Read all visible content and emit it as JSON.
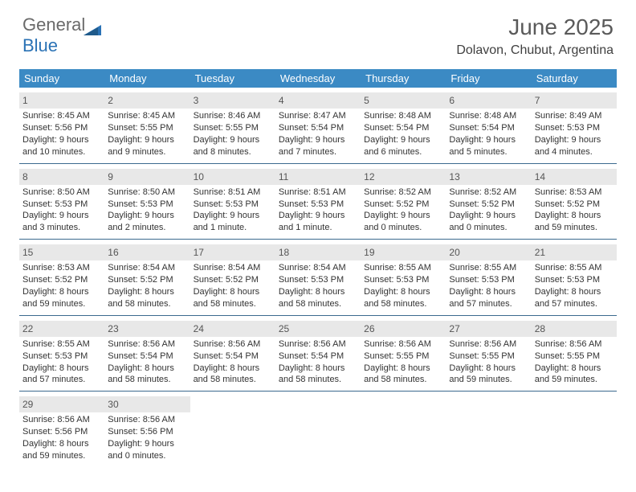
{
  "brand": {
    "part1": "General",
    "part2": "Blue"
  },
  "title": "June 2025",
  "location": "Dolavon, Chubut, Argentina",
  "colors": {
    "header_bar": "#3b8ac4",
    "day_num_bg": "#e8e8e8",
    "week_divider": "#3b6a8e",
    "brand_gray": "#6a6a6a",
    "brand_blue": "#2a72b5"
  },
  "days_of_week": [
    "Sunday",
    "Monday",
    "Tuesday",
    "Wednesday",
    "Thursday",
    "Friday",
    "Saturday"
  ],
  "weeks": [
    [
      {
        "n": "1",
        "sr": "Sunrise: 8:45 AM",
        "ss": "Sunset: 5:56 PM",
        "d1": "Daylight: 9 hours",
        "d2": "and 10 minutes."
      },
      {
        "n": "2",
        "sr": "Sunrise: 8:45 AM",
        "ss": "Sunset: 5:55 PM",
        "d1": "Daylight: 9 hours",
        "d2": "and 9 minutes."
      },
      {
        "n": "3",
        "sr": "Sunrise: 8:46 AM",
        "ss": "Sunset: 5:55 PM",
        "d1": "Daylight: 9 hours",
        "d2": "and 8 minutes."
      },
      {
        "n": "4",
        "sr": "Sunrise: 8:47 AM",
        "ss": "Sunset: 5:54 PM",
        "d1": "Daylight: 9 hours",
        "d2": "and 7 minutes."
      },
      {
        "n": "5",
        "sr": "Sunrise: 8:48 AM",
        "ss": "Sunset: 5:54 PM",
        "d1": "Daylight: 9 hours",
        "d2": "and 6 minutes."
      },
      {
        "n": "6",
        "sr": "Sunrise: 8:48 AM",
        "ss": "Sunset: 5:54 PM",
        "d1": "Daylight: 9 hours",
        "d2": "and 5 minutes."
      },
      {
        "n": "7",
        "sr": "Sunrise: 8:49 AM",
        "ss": "Sunset: 5:53 PM",
        "d1": "Daylight: 9 hours",
        "d2": "and 4 minutes."
      }
    ],
    [
      {
        "n": "8",
        "sr": "Sunrise: 8:50 AM",
        "ss": "Sunset: 5:53 PM",
        "d1": "Daylight: 9 hours",
        "d2": "and 3 minutes."
      },
      {
        "n": "9",
        "sr": "Sunrise: 8:50 AM",
        "ss": "Sunset: 5:53 PM",
        "d1": "Daylight: 9 hours",
        "d2": "and 2 minutes."
      },
      {
        "n": "10",
        "sr": "Sunrise: 8:51 AM",
        "ss": "Sunset: 5:53 PM",
        "d1": "Daylight: 9 hours",
        "d2": "and 1 minute."
      },
      {
        "n": "11",
        "sr": "Sunrise: 8:51 AM",
        "ss": "Sunset: 5:53 PM",
        "d1": "Daylight: 9 hours",
        "d2": "and 1 minute."
      },
      {
        "n": "12",
        "sr": "Sunrise: 8:52 AM",
        "ss": "Sunset: 5:52 PM",
        "d1": "Daylight: 9 hours",
        "d2": "and 0 minutes."
      },
      {
        "n": "13",
        "sr": "Sunrise: 8:52 AM",
        "ss": "Sunset: 5:52 PM",
        "d1": "Daylight: 9 hours",
        "d2": "and 0 minutes."
      },
      {
        "n": "14",
        "sr": "Sunrise: 8:53 AM",
        "ss": "Sunset: 5:52 PM",
        "d1": "Daylight: 8 hours",
        "d2": "and 59 minutes."
      }
    ],
    [
      {
        "n": "15",
        "sr": "Sunrise: 8:53 AM",
        "ss": "Sunset: 5:52 PM",
        "d1": "Daylight: 8 hours",
        "d2": "and 59 minutes."
      },
      {
        "n": "16",
        "sr": "Sunrise: 8:54 AM",
        "ss": "Sunset: 5:52 PM",
        "d1": "Daylight: 8 hours",
        "d2": "and 58 minutes."
      },
      {
        "n": "17",
        "sr": "Sunrise: 8:54 AM",
        "ss": "Sunset: 5:52 PM",
        "d1": "Daylight: 8 hours",
        "d2": "and 58 minutes."
      },
      {
        "n": "18",
        "sr": "Sunrise: 8:54 AM",
        "ss": "Sunset: 5:53 PM",
        "d1": "Daylight: 8 hours",
        "d2": "and 58 minutes."
      },
      {
        "n": "19",
        "sr": "Sunrise: 8:55 AM",
        "ss": "Sunset: 5:53 PM",
        "d1": "Daylight: 8 hours",
        "d2": "and 58 minutes."
      },
      {
        "n": "20",
        "sr": "Sunrise: 8:55 AM",
        "ss": "Sunset: 5:53 PM",
        "d1": "Daylight: 8 hours",
        "d2": "and 57 minutes."
      },
      {
        "n": "21",
        "sr": "Sunrise: 8:55 AM",
        "ss": "Sunset: 5:53 PM",
        "d1": "Daylight: 8 hours",
        "d2": "and 57 minutes."
      }
    ],
    [
      {
        "n": "22",
        "sr": "Sunrise: 8:55 AM",
        "ss": "Sunset: 5:53 PM",
        "d1": "Daylight: 8 hours",
        "d2": "and 57 minutes."
      },
      {
        "n": "23",
        "sr": "Sunrise: 8:56 AM",
        "ss": "Sunset: 5:54 PM",
        "d1": "Daylight: 8 hours",
        "d2": "and 58 minutes."
      },
      {
        "n": "24",
        "sr": "Sunrise: 8:56 AM",
        "ss": "Sunset: 5:54 PM",
        "d1": "Daylight: 8 hours",
        "d2": "and 58 minutes."
      },
      {
        "n": "25",
        "sr": "Sunrise: 8:56 AM",
        "ss": "Sunset: 5:54 PM",
        "d1": "Daylight: 8 hours",
        "d2": "and 58 minutes."
      },
      {
        "n": "26",
        "sr": "Sunrise: 8:56 AM",
        "ss": "Sunset: 5:55 PM",
        "d1": "Daylight: 8 hours",
        "d2": "and 58 minutes."
      },
      {
        "n": "27",
        "sr": "Sunrise: 8:56 AM",
        "ss": "Sunset: 5:55 PM",
        "d1": "Daylight: 8 hours",
        "d2": "and 59 minutes."
      },
      {
        "n": "28",
        "sr": "Sunrise: 8:56 AM",
        "ss": "Sunset: 5:55 PM",
        "d1": "Daylight: 8 hours",
        "d2": "and 59 minutes."
      }
    ],
    [
      {
        "n": "29",
        "sr": "Sunrise: 8:56 AM",
        "ss": "Sunset: 5:56 PM",
        "d1": "Daylight: 8 hours",
        "d2": "and 59 minutes."
      },
      {
        "n": "30",
        "sr": "Sunrise: 8:56 AM",
        "ss": "Sunset: 5:56 PM",
        "d1": "Daylight: 9 hours",
        "d2": "and 0 minutes."
      },
      null,
      null,
      null,
      null,
      null
    ]
  ]
}
